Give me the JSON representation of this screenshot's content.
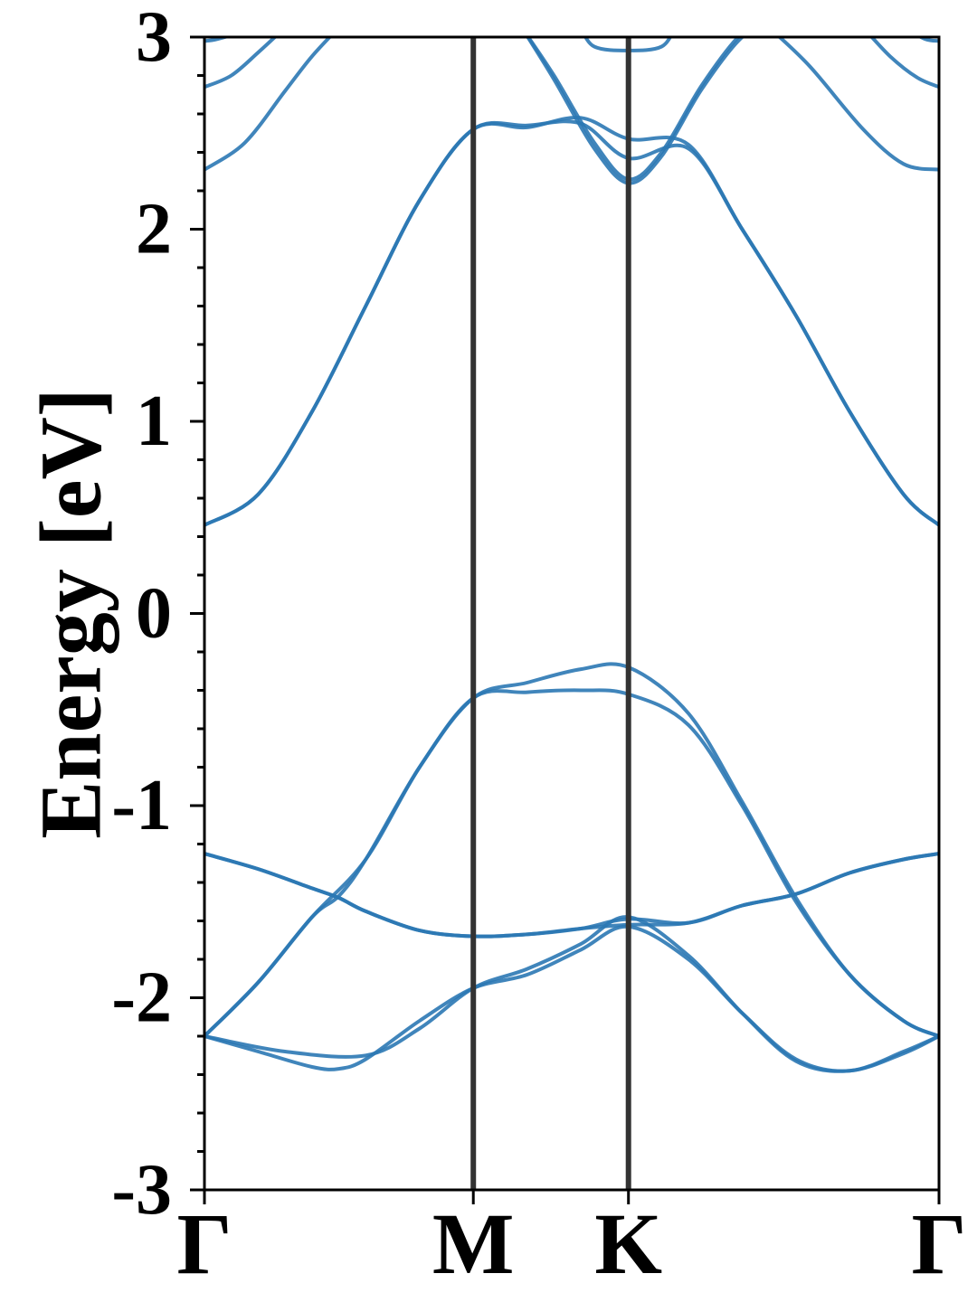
{
  "chart_data": {
    "type": "line",
    "title": "",
    "ylabel": "Energy [eV]",
    "xlabel": "",
    "ylim": [
      -3,
      3
    ],
    "y_ticks": [
      -3,
      -2,
      -1,
      0,
      1,
      2,
      3
    ],
    "y_tick_labels": [
      "-3",
      "-2",
      "-1",
      "0",
      "1",
      "2",
      "3"
    ],
    "y_minor_step": 0.2,
    "k_path": [
      {
        "label": "Γ",
        "x": 0
      },
      {
        "label": "M",
        "x": 1.0
      },
      {
        "label": "K",
        "x": 1.577
      },
      {
        "label": "Γ",
        "x": 2.732
      }
    ],
    "band_color": "#2b78b4",
    "divider_color": "#333333",
    "series": [
      {
        "x": [
          0,
          0.2,
          0.4,
          0.5,
          0.6,
          0.8,
          1.0,
          1.2,
          1.4,
          1.577,
          1.8,
          2.0,
          2.2,
          2.4,
          2.6,
          2.732
        ],
        "y": [
          -2.2,
          -2.28,
          -2.36,
          -2.37,
          -2.32,
          -2.12,
          -1.95,
          -1.88,
          -1.75,
          -1.63,
          -1.8,
          -2.08,
          -2.32,
          -2.38,
          -2.28,
          -2.2
        ]
      },
      {
        "x": [
          0,
          0.2,
          0.4,
          0.5,
          0.6,
          0.8,
          1.0,
          1.2,
          1.4,
          1.577,
          1.8,
          2.0,
          2.2,
          2.4,
          2.6,
          2.732
        ],
        "y": [
          -2.2,
          -1.92,
          -1.58,
          -1.47,
          -1.28,
          -0.8,
          -0.44,
          -0.41,
          -0.4,
          -0.42,
          -0.58,
          -1.0,
          -1.5,
          -1.88,
          -2.12,
          -2.2
        ]
      },
      {
        "x": [
          0,
          0.2,
          0.4,
          0.5,
          0.6,
          0.8,
          1.0,
          1.2,
          1.4,
          1.577,
          1.8,
          2.0,
          2.2,
          2.4,
          2.6,
          2.732
        ],
        "y": [
          -1.25,
          -1.33,
          -1.43,
          -1.48,
          -1.55,
          -1.65,
          -1.68,
          -1.67,
          -1.64,
          -1.62,
          -1.61,
          -1.52,
          -1.46,
          -1.35,
          -1.28,
          -1.25
        ]
      },
      {
        "x": [
          0,
          0.2,
          0.4,
          0.5,
          0.6,
          0.8,
          1.0,
          1.2,
          1.4,
          1.577,
          1.8,
          2.0,
          2.2,
          2.4,
          2.6,
          2.732
        ],
        "y": [
          -1.25,
          -1.33,
          -1.43,
          -1.48,
          -1.55,
          -1.65,
          -1.68,
          -1.67,
          -1.64,
          -1.59,
          -1.61,
          -1.52,
          -1.46,
          -1.35,
          -1.28,
          -1.25
        ]
      },
      {
        "x": [
          0,
          0.3,
          0.6,
          0.8,
          1.0,
          1.2,
          1.4,
          1.577,
          1.8,
          2.0,
          2.2,
          2.4,
          2.6,
          2.732
        ],
        "y": [
          -2.2,
          -2.28,
          -2.3,
          -2.16,
          -1.95,
          -1.85,
          -1.72,
          -1.58,
          -1.78,
          -2.08,
          -2.33,
          -2.38,
          -2.29,
          -2.2
        ]
      },
      {
        "x": [
          0,
          0.2,
          0.4,
          0.6,
          0.8,
          1.0,
          1.2,
          1.4,
          1.577,
          1.8,
          2.0,
          2.2,
          2.4,
          2.6,
          2.732
        ],
        "y": [
          -2.2,
          -1.92,
          -1.58,
          -1.28,
          -0.8,
          -0.44,
          -0.36,
          -0.29,
          -0.28,
          -0.52,
          -0.98,
          -1.48,
          -1.88,
          -2.12,
          -2.2
        ]
      },
      {
        "x": [
          0,
          0.2,
          0.4,
          0.6,
          0.8,
          1.0,
          1.2,
          1.4,
          1.577,
          1.8,
          2.0,
          2.2,
          2.4,
          2.6,
          2.732
        ],
        "y": [
          0.46,
          0.62,
          1.05,
          1.6,
          2.15,
          2.52,
          2.54,
          2.55,
          2.37,
          2.42,
          2.0,
          1.55,
          1.05,
          0.62,
          0.46
        ]
      },
      {
        "x": [
          0,
          0.2,
          0.4,
          0.6,
          0.8,
          1.0,
          1.2,
          1.4,
          1.577,
          1.8,
          2.0,
          2.2,
          2.4,
          2.6,
          2.732
        ],
        "y": [
          0.46,
          0.62,
          1.05,
          1.6,
          2.15,
          2.52,
          2.53,
          2.58,
          2.47,
          2.44,
          2.0,
          1.55,
          1.05,
          0.62,
          0.46
        ]
      },
      {
        "x": [
          0,
          0.15,
          0.3,
          0.4,
          0.5
        ],
        "y": [
          2.31,
          2.45,
          2.72,
          2.9,
          3.05
        ]
      },
      {
        "x": [
          0,
          0.1,
          0.2,
          0.3
        ],
        "y": [
          2.74,
          2.8,
          2.92,
          3.05
        ]
      },
      {
        "x": [
          0,
          0.05,
          0.2
        ],
        "y": [
          2.98,
          2.99,
          3.05
        ]
      },
      {
        "x": [
          1.18,
          1.3,
          1.45,
          1.577,
          1.7,
          1.85,
          2.0,
          2.1
        ],
        "y": [
          3.05,
          2.8,
          2.45,
          2.26,
          2.4,
          2.75,
          3.02,
          3.05
        ]
      },
      {
        "x": [
          1.18,
          1.3,
          1.45,
          1.577,
          1.7,
          1.85,
          2.0,
          2.1
        ],
        "y": [
          3.05,
          2.78,
          2.42,
          2.24,
          2.38,
          2.73,
          3.0,
          3.05
        ]
      },
      {
        "x": [
          1.4,
          1.45,
          1.577,
          1.7,
          1.75
        ],
        "y": [
          3.05,
          2.95,
          2.93,
          2.95,
          3.05
        ]
      },
      {
        "x": [
          2.1,
          2.25,
          2.45,
          2.6,
          2.732
        ],
        "y": [
          3.05,
          2.85,
          2.52,
          2.34,
          2.31
        ]
      },
      {
        "x": [
          2.45,
          2.55,
          2.65,
          2.732
        ],
        "y": [
          3.05,
          2.9,
          2.79,
          2.74
        ]
      },
      {
        "x": [
          2.6,
          2.68,
          2.732
        ],
        "y": [
          3.05,
          2.99,
          2.98
        ]
      }
    ]
  }
}
